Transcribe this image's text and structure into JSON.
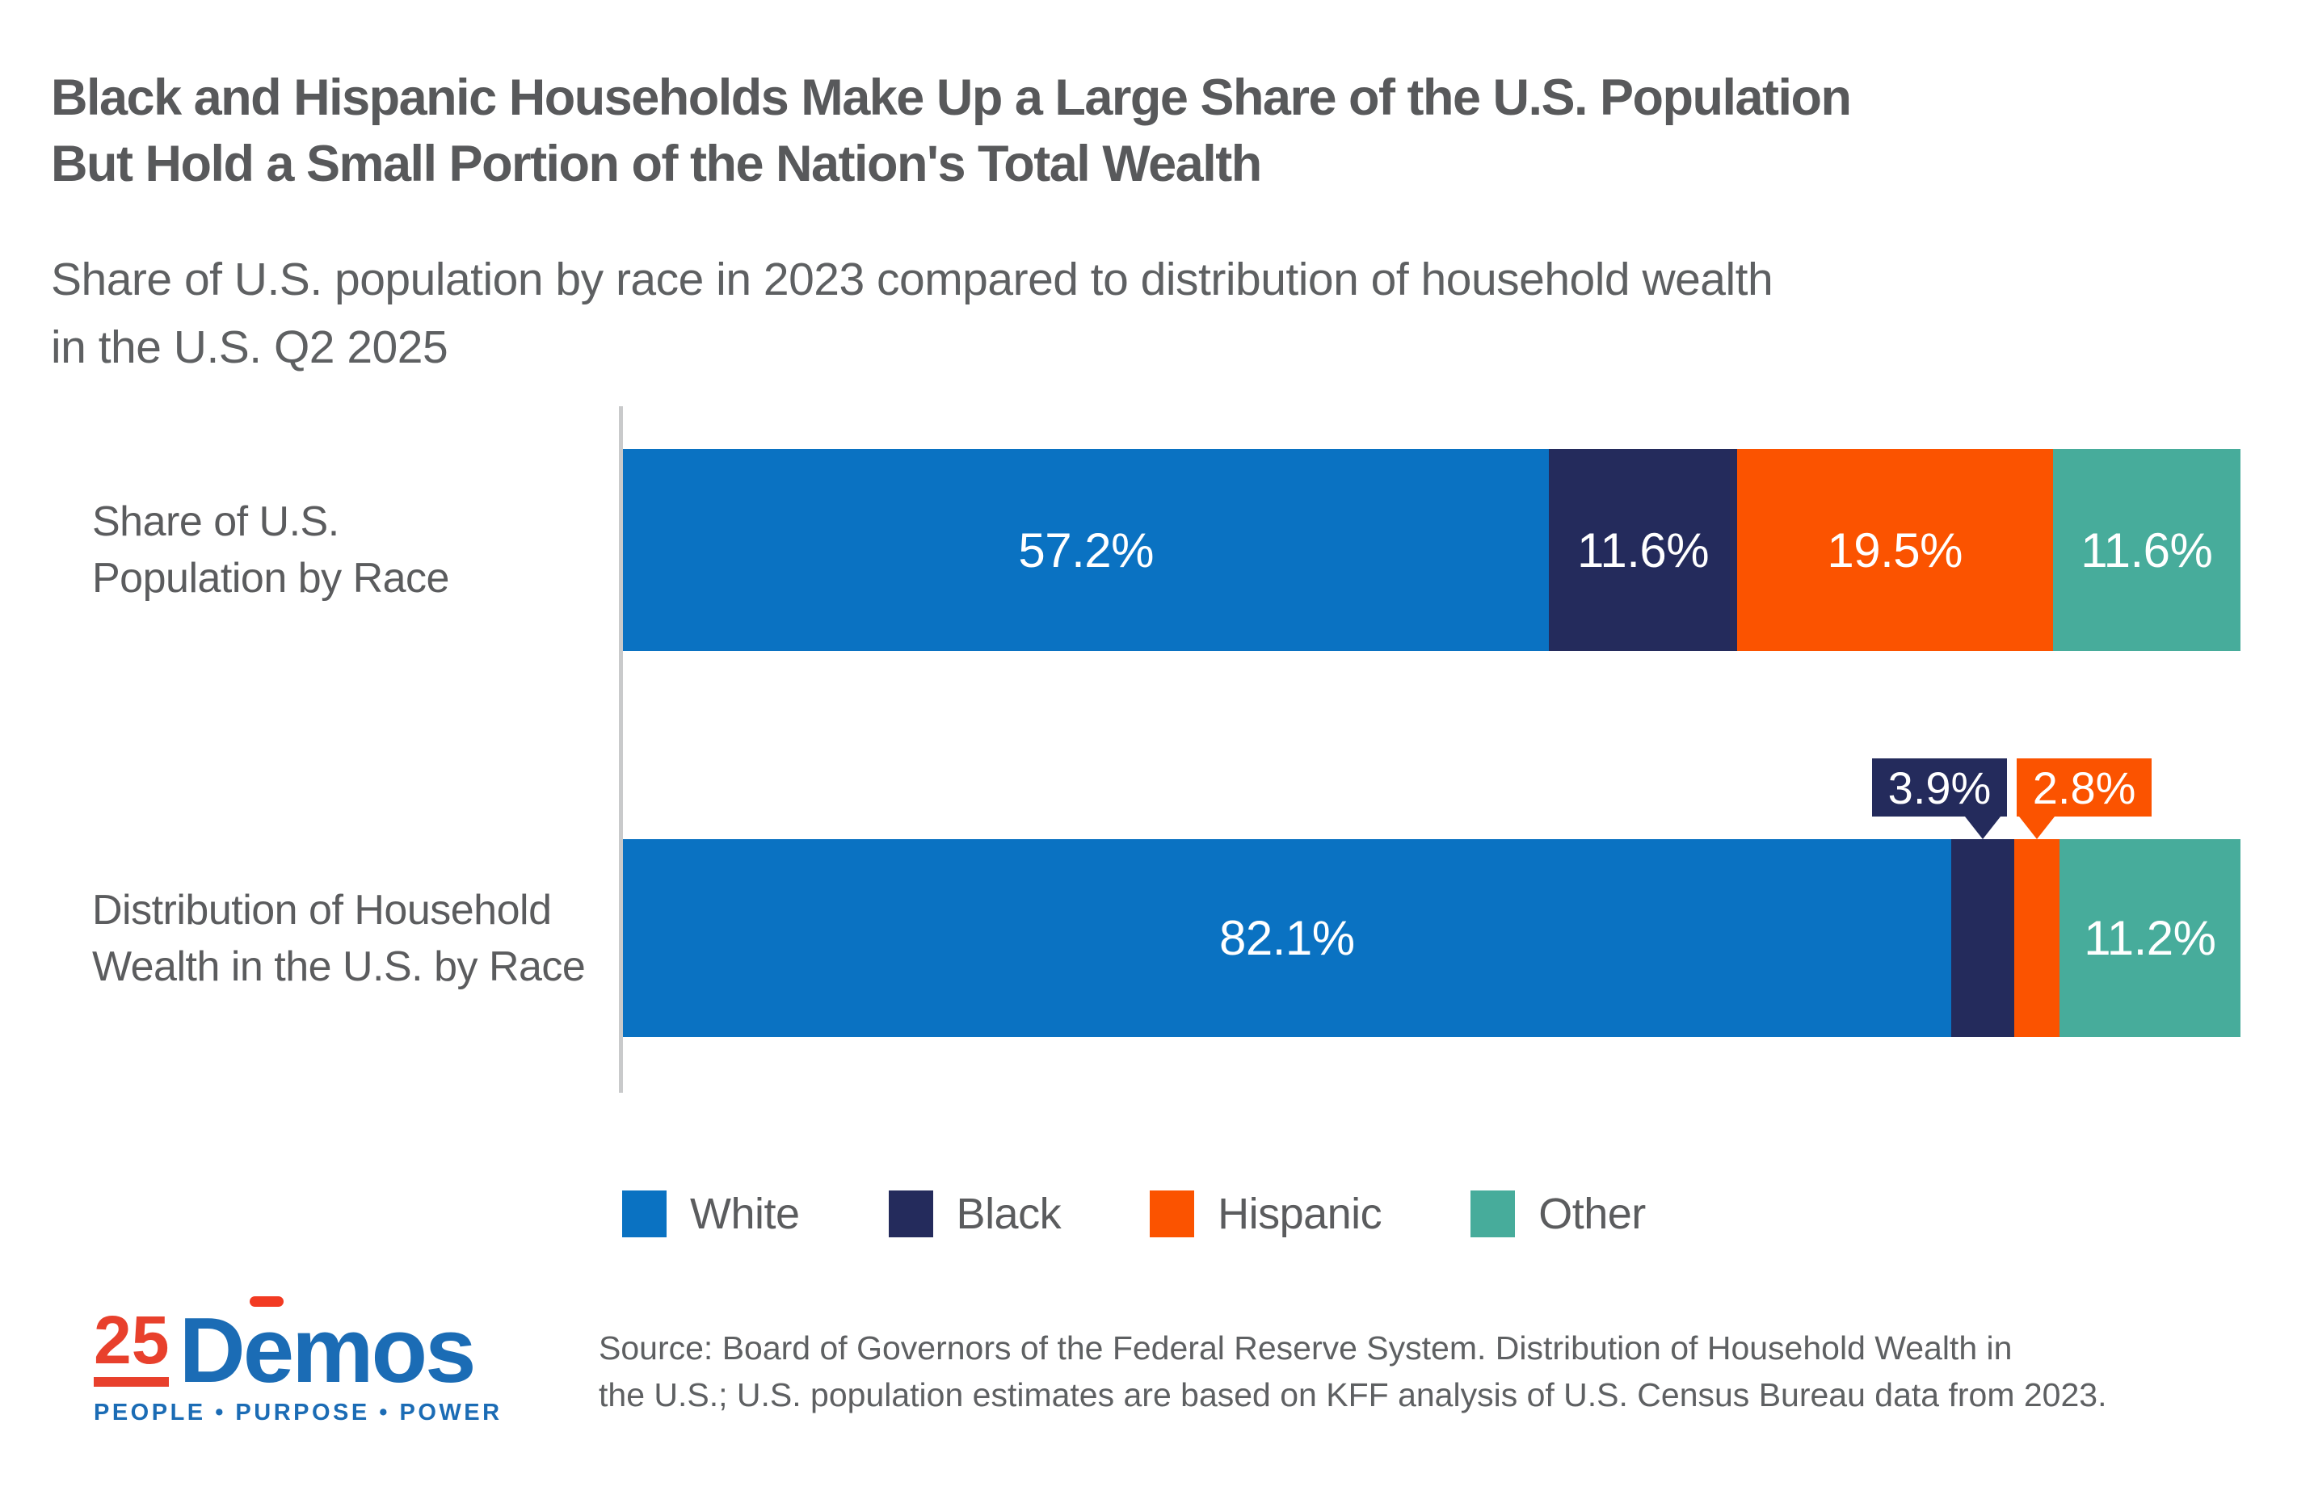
{
  "header": {
    "title_line1": "Black and Hispanic Households Make Up a Large Share of the U.S. Population",
    "title_line2": "But Hold a Small Portion of the Nation's Total Wealth",
    "subtitle_line1": "Share of U.S. population by race in 2023 compared to distribution of household wealth",
    "subtitle_line2": "in the U.S. Q2 2025"
  },
  "chart_data": {
    "type": "bar",
    "orientation": "horizontal_stacked",
    "unit": "%",
    "xlim": [
      0,
      100
    ],
    "grid": false,
    "categories": [
      {
        "id": "population",
        "label_lines": [
          "Share of U.S.",
          "Population by Race"
        ]
      },
      {
        "id": "wealth",
        "label_lines": [
          "Distribution of Household",
          "Wealth in the U.S. by Race"
        ]
      }
    ],
    "series": [
      {
        "name": "White",
        "color": "#0A72C2",
        "values": [
          57.2,
          82.1
        ]
      },
      {
        "name": "Black",
        "color": "#242B5C",
        "values": [
          11.6,
          3.9
        ]
      },
      {
        "name": "Hispanic",
        "color": "#FB5300",
        "values": [
          19.5,
          2.8
        ]
      },
      {
        "name": "Other",
        "color": "#47AC9B",
        "values": [
          11.6,
          11.2
        ]
      }
    ],
    "value_label_style": [
      [
        "inside",
        "inside",
        "inside",
        "inside"
      ],
      [
        "inside",
        "callout",
        "callout",
        "inside"
      ]
    ],
    "value_label_color": "#FFFFFF",
    "axis_baseline_color": "#C9CACB",
    "legend_position": "bottom"
  },
  "colors": {
    "title_text": "#58595B",
    "body_text": "#5E6062",
    "axis_line": "#C9CACB"
  },
  "footer": {
    "logo": {
      "number": "25",
      "wordmark_prefix": "D",
      "wordmark_e": "e",
      "wordmark_suffix": "mos",
      "tagline": "PEOPLE • PURPOSE • POWER",
      "red": "#E8402C",
      "blue": "#1B6CB5"
    },
    "source_line1": "Source: Board of Governors of the Federal Reserve System. Distribution of Household Wealth in",
    "source_line2": "the U.S.; U.S. population estimates are based on KFF analysis of U.S. Census Bureau data from 2023."
  }
}
